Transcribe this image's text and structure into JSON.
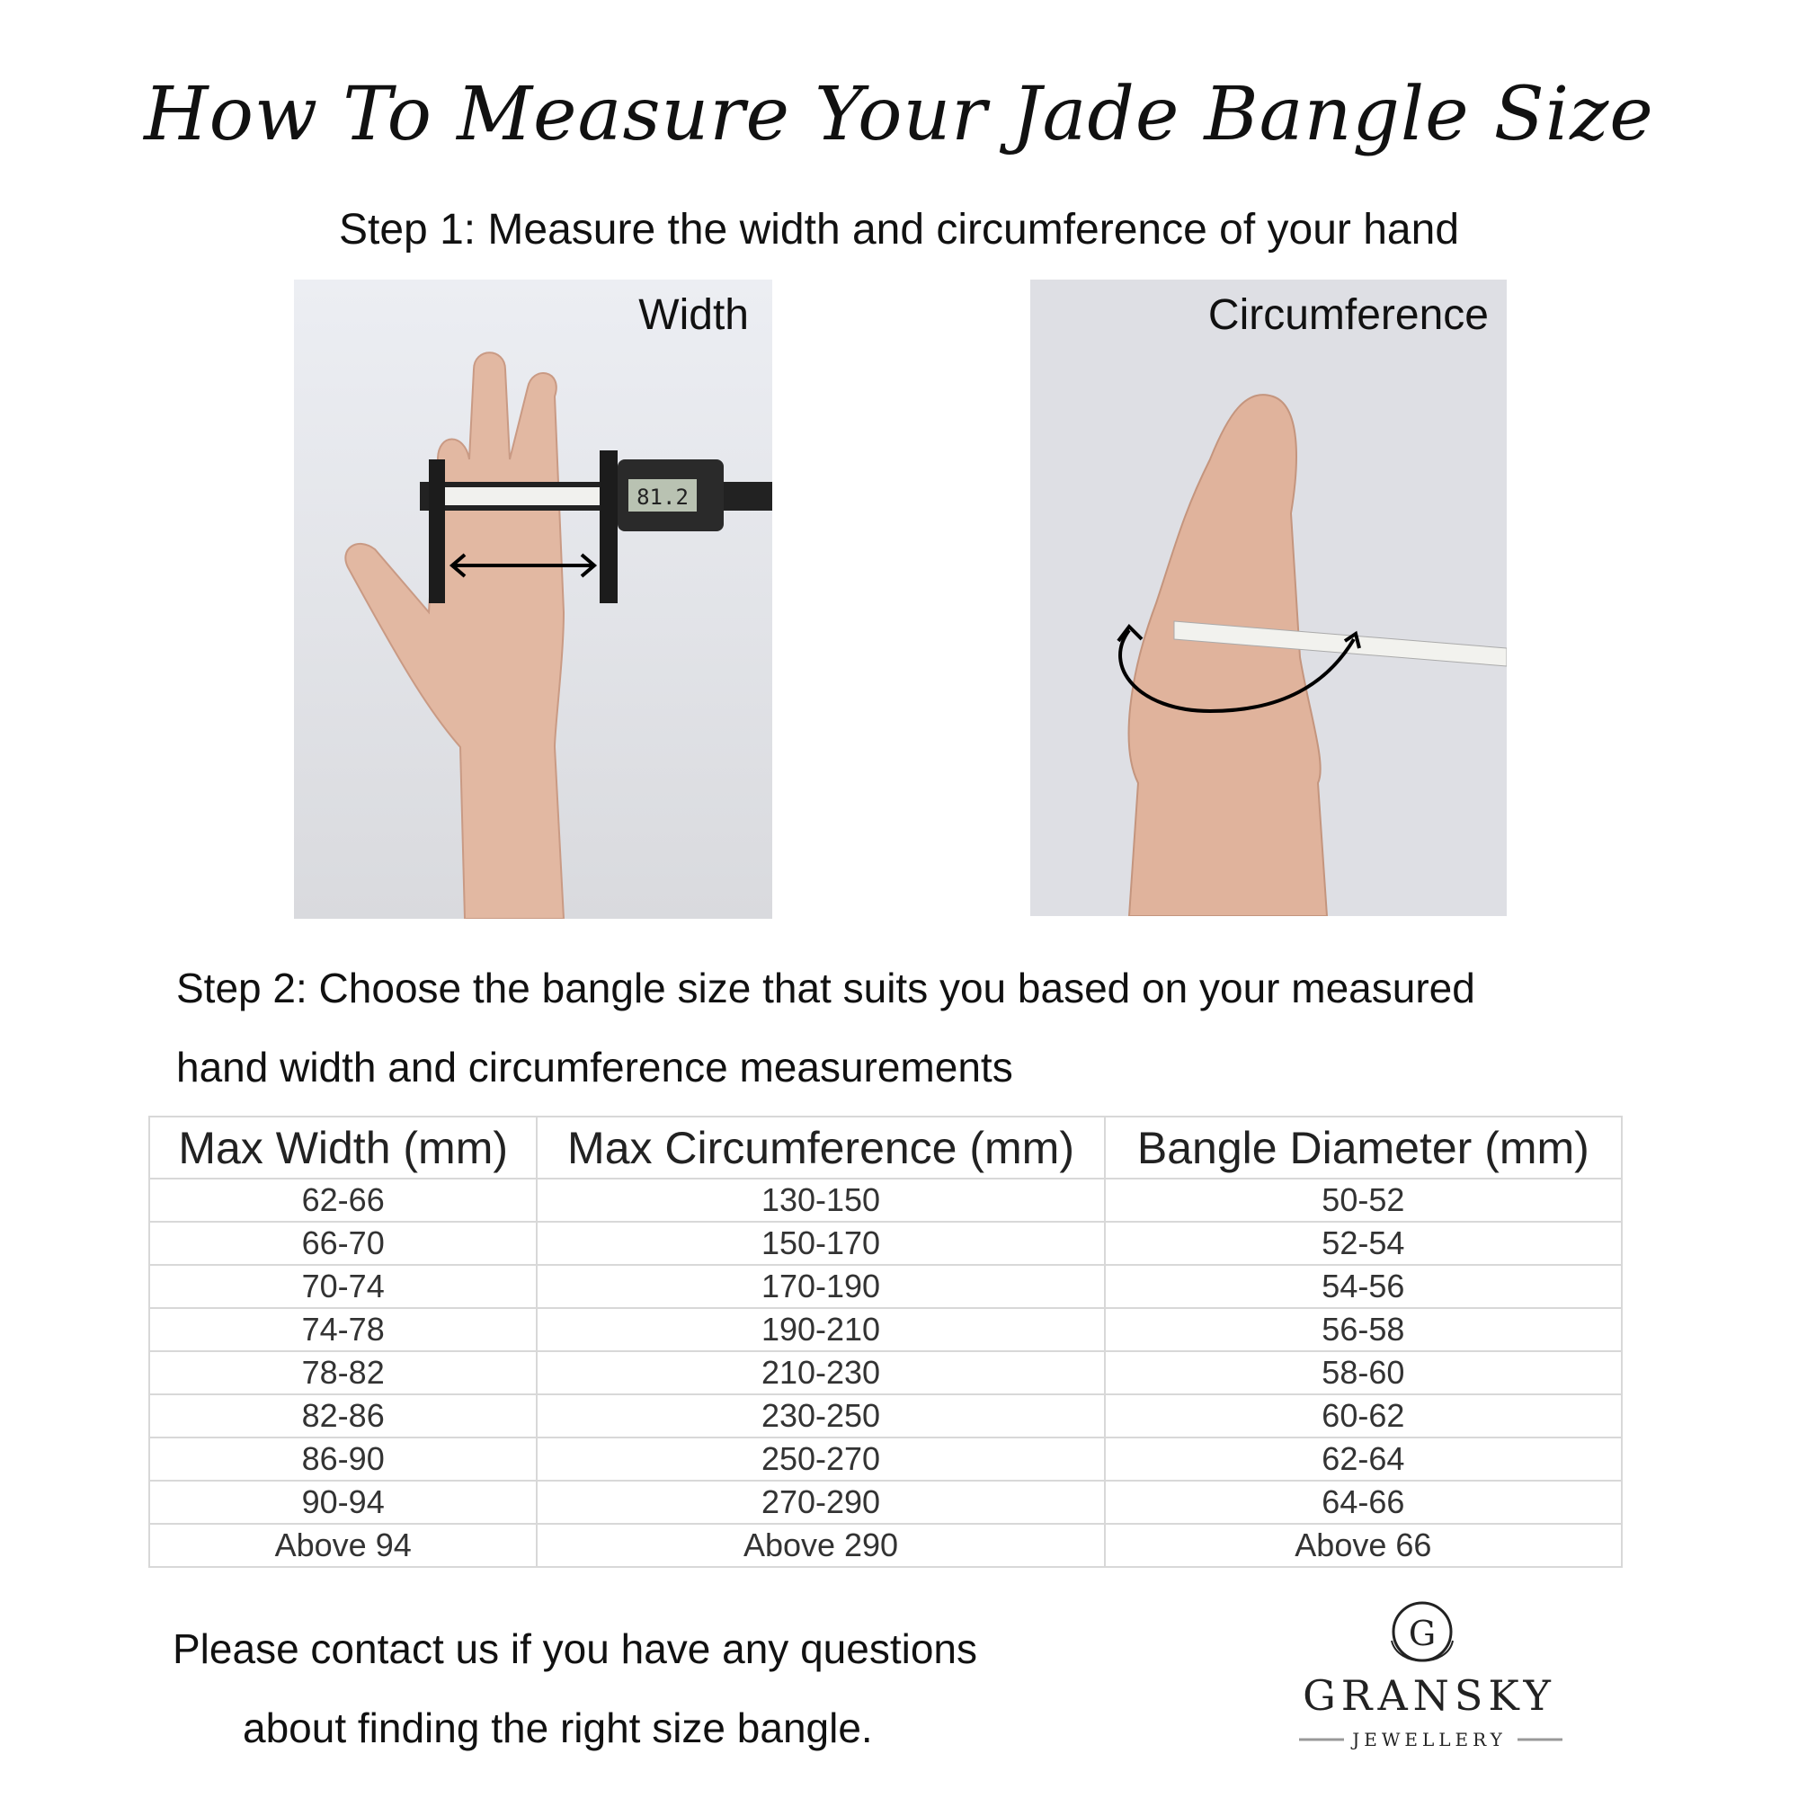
{
  "title": "How To Measure Your Jade Bangle Size",
  "step1": "Step 1:  Measure the width and circumference of your hand",
  "photos": {
    "width_label": "Width",
    "circumference_label": "Circumference",
    "caliper_reading": "81.2"
  },
  "step2": {
    "line1": "Step 2: Choose the bangle size that suits you based on your measured",
    "line2": "hand width and circumference measurements"
  },
  "table": {
    "headers": [
      "Max Width (mm)",
      "Max Circumference (mm)",
      "Bangle Diameter (mm)"
    ],
    "rows": [
      [
        "62-66",
        "130-150",
        "50-52"
      ],
      [
        "66-70",
        "150-170",
        "52-54"
      ],
      [
        "70-74",
        "170-190",
        "54-56"
      ],
      [
        "74-78",
        "190-210",
        "56-58"
      ],
      [
        "78-82",
        "210-230",
        "58-60"
      ],
      [
        "82-86",
        "230-250",
        "60-62"
      ],
      [
        "86-90",
        "250-270",
        "62-64"
      ],
      [
        "90-94",
        "270-290",
        "64-66"
      ],
      [
        "Above 94",
        "Above 290",
        "Above 66"
      ]
    ]
  },
  "contact": {
    "line1": "Please contact us if you have any questions",
    "line2": "about finding the right size bangle."
  },
  "logo": {
    "monogram": "G",
    "brand": "GRANSKY",
    "sub": "JEWELLERY"
  }
}
